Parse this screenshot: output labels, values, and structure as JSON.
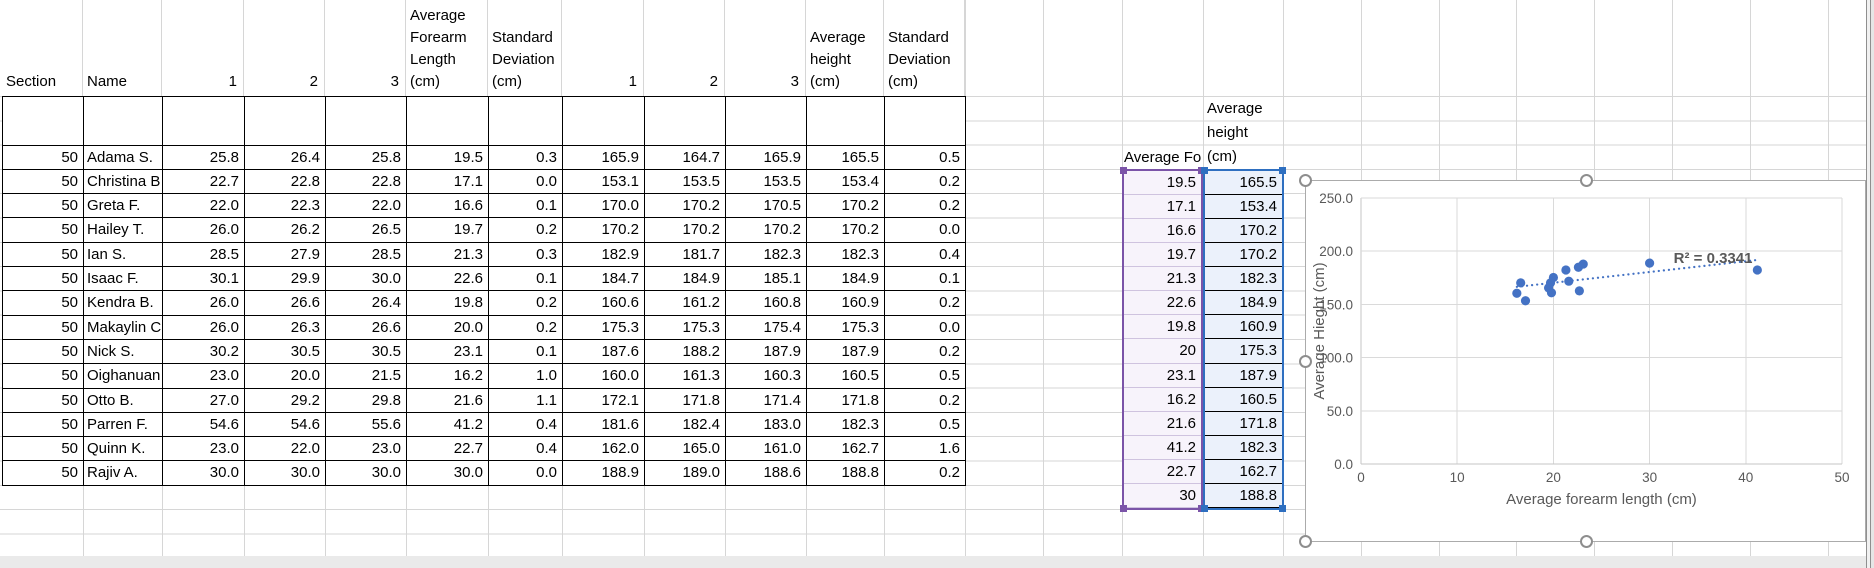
{
  "sheet": {
    "table": {
      "headers": [
        "Section",
        "Name",
        "1",
        "2",
        "3",
        "Average Forearm Length (cm)",
        "Standard Deviation (cm)",
        "1",
        "2",
        "3",
        "Average height (cm)",
        "Standard Deviation (cm)"
      ],
      "rows": [
        [
          "50",
          "Adama S.",
          "25.8",
          "26.4",
          "25.8",
          "19.5",
          "0.3",
          "165.9",
          "164.7",
          "165.9",
          "165.5",
          "0.5"
        ],
        [
          "50",
          "Christina B",
          "22.7",
          "22.8",
          "22.8",
          "17.1",
          "0.0",
          "153.1",
          "153.5",
          "153.5",
          "153.4",
          "0.2"
        ],
        [
          "50",
          "Greta F.",
          "22.0",
          "22.3",
          "22.0",
          "16.6",
          "0.1",
          "170.0",
          "170.2",
          "170.5",
          "170.2",
          "0.2"
        ],
        [
          "50",
          "Hailey T.",
          "26.0",
          "26.2",
          "26.5",
          "19.7",
          "0.2",
          "170.2",
          "170.2",
          "170.2",
          "170.2",
          "0.0"
        ],
        [
          "50",
          "Ian S.",
          "28.5",
          "27.9",
          "28.5",
          "21.3",
          "0.3",
          "182.9",
          "181.7",
          "182.3",
          "182.3",
          "0.4"
        ],
        [
          "50",
          "Isaac F.",
          "30.1",
          "29.9",
          "30.0",
          "22.6",
          "0.1",
          "184.7",
          "184.9",
          "185.1",
          "184.9",
          "0.1"
        ],
        [
          "50",
          "Kendra B.",
          "26.0",
          "26.6",
          "26.4",
          "19.8",
          "0.2",
          "160.6",
          "161.2",
          "160.8",
          "160.9",
          "0.2"
        ],
        [
          "50",
          "Makaylin C",
          "26.0",
          "26.3",
          "26.6",
          "20.0",
          "0.2",
          "175.3",
          "175.3",
          "175.4",
          "175.3",
          "0.0"
        ],
        [
          "50",
          "Nick S.",
          "30.2",
          "30.5",
          "30.5",
          "23.1",
          "0.1",
          "187.6",
          "188.2",
          "187.9",
          "187.9",
          "0.2"
        ],
        [
          "50",
          "Oighanuan",
          "23.0",
          "20.0",
          "21.5",
          "16.2",
          "1.0",
          "160.0",
          "161.3",
          "160.3",
          "160.5",
          "0.5"
        ],
        [
          "50",
          "Otto B.",
          "27.0",
          "29.2",
          "29.8",
          "21.6",
          "1.1",
          "172.1",
          "171.8",
          "171.4",
          "171.8",
          "0.2"
        ],
        [
          "50",
          "Parren F.",
          "54.6",
          "54.6",
          "55.6",
          "41.2",
          "0.4",
          "181.6",
          "182.4",
          "183.0",
          "182.3",
          "0.5"
        ],
        [
          "50",
          "Quinn K.",
          "23.0",
          "22.0",
          "23.0",
          "22.7",
          "0.4",
          "162.0",
          "165.0",
          "161.0",
          "162.7",
          "1.6"
        ],
        [
          "50",
          "Rajiv A.",
          "30.0",
          "30.0",
          "30.0",
          "30.0",
          "0.0",
          "188.9",
          "189.0",
          "188.6",
          "188.8",
          "0.2"
        ]
      ]
    },
    "summary": {
      "forearm_header": "Average Fo",
      "height_header_lines": [
        "Average",
        "height",
        "(cm)"
      ],
      "forearm_values": [
        "19.5",
        "17.1",
        "16.6",
        "19.7",
        "21.3",
        "22.6",
        "19.8",
        "20",
        "23.1",
        "16.2",
        "21.6",
        "41.2",
        "22.7",
        "30"
      ],
      "height_values": [
        "165.5",
        "153.4",
        "170.2",
        "170.2",
        "182.3",
        "184.9",
        "160.9",
        "175.3",
        "187.9",
        "160.5",
        "171.8",
        "182.3",
        "162.7",
        "188.8"
      ],
      "forearm_range_color": "#7b54a8",
      "height_range_color": "#2e6fc0"
    }
  },
  "chart_data": {
    "type": "scatter",
    "points": [
      [
        19.5,
        165.5
      ],
      [
        17.1,
        153.4
      ],
      [
        16.6,
        170.2
      ],
      [
        19.7,
        170.2
      ],
      [
        21.3,
        182.3
      ],
      [
        22.6,
        184.9
      ],
      [
        19.8,
        160.9
      ],
      [
        20,
        175.3
      ],
      [
        23.1,
        187.9
      ],
      [
        16.2,
        160.5
      ],
      [
        21.6,
        171.8
      ],
      [
        41.2,
        182.3
      ],
      [
        22.7,
        162.7
      ],
      [
        30,
        188.8
      ]
    ],
    "xlabel": "Average forearm length (cm)",
    "ylabel": "Average Hieght (cm)",
    "xlim": [
      0,
      50
    ],
    "ylim": [
      0,
      250
    ],
    "x_ticks": [
      "0",
      "10",
      "20",
      "30",
      "40",
      "50"
    ],
    "y_ticks": [
      "0.0",
      "50.0",
      "100.0",
      "150.0",
      "200.0",
      "250.0"
    ],
    "r_squared_label": "R² = 0.3341",
    "trendline": {
      "style": "dotted",
      "fit": "linear"
    },
    "marker_color": "#4472c4",
    "trendline_color": "#4472c4",
    "label_color": "#595959",
    "gridline_color": "#dadada",
    "grid": true,
    "legend": false,
    "title": ""
  }
}
